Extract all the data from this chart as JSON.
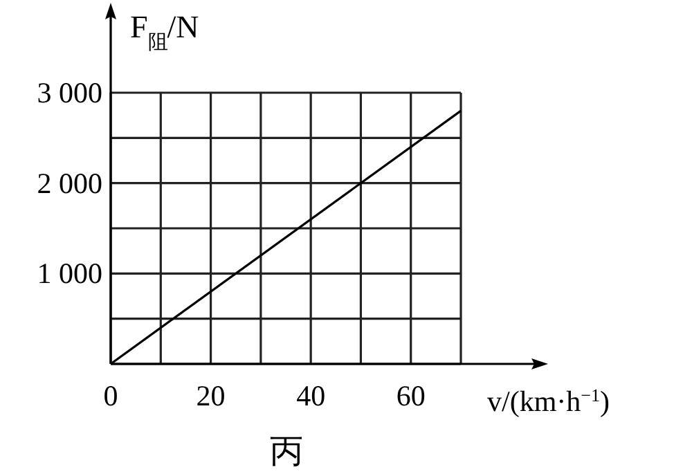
{
  "chart_data": {
    "type": "line",
    "xlabel": "v/(km·h$^{−1}$)",
    "ylabel": "F$_{阻}$/N",
    "annotations": [
      "丙"
    ],
    "x": [
      0,
      70
    ],
    "series": [
      {
        "color": "#000000",
        "values": [
          0,
          2800
        ]
      }
    ],
    "xlim": [
      0,
      70
    ],
    "ylim": [
      0,
      3000
    ],
    "xticks": [
      0,
      {
        "value": 10,
        "label": null
      },
      20,
      {
        "value": 30,
        "label": null
      },
      40,
      {
        "value": 50,
        "label": null
      },
      60,
      {
        "value": 70,
        "label": null
      }
    ],
    "yticks": [
      {
        "value": 0,
        "label": null
      },
      {
        "value": 500,
        "label": null
      },
      {
        "value": 1000,
        "label": "1 000"
      },
      {
        "value": 1500,
        "label": null
      },
      {
        "value": 2000,
        "label": "2 000"
      },
      {
        "value": 2500,
        "label": null
      },
      {
        "value": 3000,
        "label": "3 000"
      }
    ],
    "grid": true
  }
}
